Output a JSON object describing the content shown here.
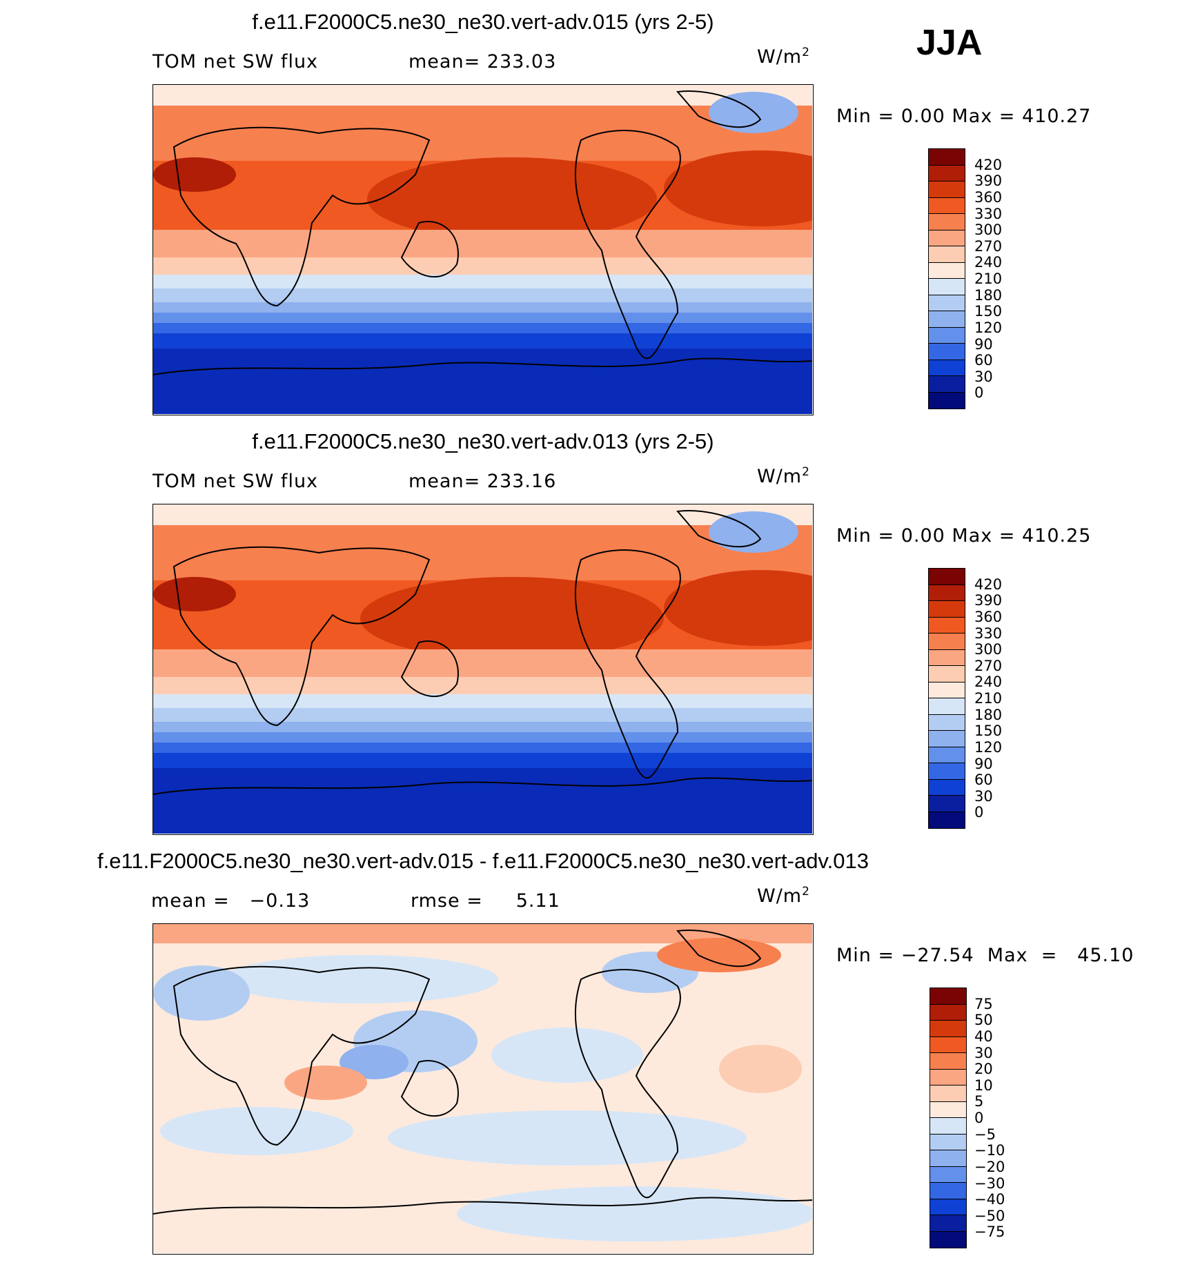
{
  "season": "JJA",
  "units": {
    "base": "W/m",
    "exp": "2"
  },
  "panels": [
    {
      "title": "f.e11.F2000C5.ne30_ne30.vert-adv.015 (yrs 2-5)",
      "left_label": "TOM net SW flux",
      "mean_label": "mean= 233.03",
      "minmax": "Min =    0.00  Max  =  410.27",
      "colorbar_labels": [
        "420",
        "390",
        "360",
        "330",
        "300",
        "270",
        "240",
        "210",
        "180",
        "150",
        "120",
        "90",
        "60",
        "30",
        "0"
      ],
      "colorbar_colors": [
        "#7a0403",
        "#b01e07",
        "#d53a0c",
        "#f05a22",
        "#f7804f",
        "#fba682",
        "#fdcdb3",
        "#fdeadd",
        "#d6e6f7",
        "#b3cdf2",
        "#8fb1ee",
        "#6390ea",
        "#3367e3",
        "#0f41d4",
        "#0a1f9f",
        "#030a7a"
      ],
      "map": {
        "kind": "full"
      }
    },
    {
      "title": "f.e11.F2000C5.ne30_ne30.vert-adv.013 (yrs 2-5)",
      "left_label": "TOM net SW flux",
      "mean_label": "mean= 233.16",
      "minmax": "Min =    0.00  Max  =  410.25",
      "colorbar_labels": [
        "420",
        "390",
        "360",
        "330",
        "300",
        "270",
        "240",
        "210",
        "180",
        "150",
        "120",
        "90",
        "60",
        "30",
        "0"
      ],
      "colorbar_colors": [
        "#7a0403",
        "#b01e07",
        "#d53a0c",
        "#f05a22",
        "#f7804f",
        "#fba682",
        "#fdcdb3",
        "#fdeadd",
        "#d6e6f7",
        "#b3cdf2",
        "#8fb1ee",
        "#6390ea",
        "#3367e3",
        "#0f41d4",
        "#0a1f9f",
        "#030a7a"
      ],
      "map": {
        "kind": "full"
      }
    },
    {
      "title": "f.e11.F2000C5.ne30_ne30.vert-adv.015 - f.e11.F2000C5.ne30_ne30.vert-adv.013",
      "left_label": "mean =   −0.13",
      "mean_label": "rmse =     5.11",
      "minmax": "Min = −27.54  Max  =   45.10",
      "colorbar_labels": [
        "75",
        "50",
        "40",
        "30",
        "20",
        "10",
        "5",
        "0",
        "−5",
        "−10",
        "−20",
        "−30",
        "−40",
        "−50",
        "−75"
      ],
      "colorbar_colors": [
        "#7a0403",
        "#b01e07",
        "#d53a0c",
        "#f05a22",
        "#f7804f",
        "#fba682",
        "#fdcdb3",
        "#fdeadd",
        "#d6e6f7",
        "#b3cdf2",
        "#8fb1ee",
        "#6390ea",
        "#3367e3",
        "#0f41d4",
        "#0a1f9f",
        "#030a7a"
      ],
      "map": {
        "kind": "diff"
      }
    }
  ]
}
